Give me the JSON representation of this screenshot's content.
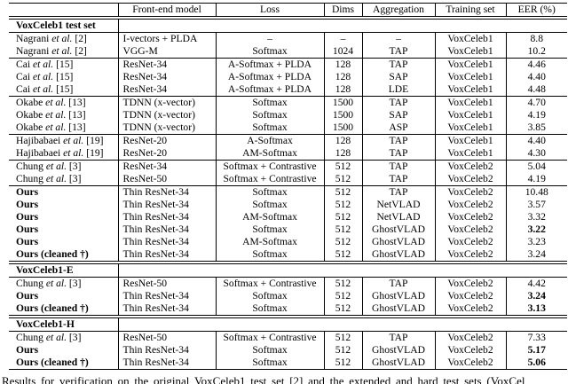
{
  "page": {
    "caption": "Results for verification on the original VoxCeleb1 test set [2] and the extended and hard test sets (VoxCel"
  },
  "table": {
    "columns": [
      {
        "label": ""
      },
      {
        "label": "Front-end model"
      },
      {
        "label": "Loss"
      },
      {
        "label": "Dims"
      },
      {
        "label": "Aggregation"
      },
      {
        "label": "Training set"
      },
      {
        "label": "EER (%)"
      }
    ],
    "sections": [
      {
        "title": "VoxCeleb1 test set",
        "groups": [
          [
            {
              "method": "Nagrani et al. [2]",
              "method_bold": false,
              "front_end": "I-vectors + PLDA",
              "loss": "–",
              "dims": "–",
              "aggregation": "–",
              "training_set": "VoxCeleb1",
              "eer": "8.8",
              "eer_bold": false
            },
            {
              "method": "Nagrani et al. [2]",
              "method_bold": false,
              "front_end": "VGG-M",
              "loss": "Softmax",
              "dims": "1024",
              "aggregation": "TAP",
              "training_set": "VoxCeleb1",
              "eer": "10.2",
              "eer_bold": false
            }
          ],
          [
            {
              "method": "Cai et al. [15]",
              "method_bold": false,
              "front_end": "ResNet-34",
              "loss": "A-Softmax + PLDA",
              "dims": "128",
              "aggregation": "TAP",
              "training_set": "VoxCeleb1",
              "eer": "4.46",
              "eer_bold": false
            },
            {
              "method": "Cai et al. [15]",
              "method_bold": false,
              "front_end": "ResNet-34",
              "loss": "A-Softmax + PLDA",
              "dims": "128",
              "aggregation": "SAP",
              "training_set": "VoxCeleb1",
              "eer": "4.40",
              "eer_bold": false
            },
            {
              "method": "Cai et al. [15]",
              "method_bold": false,
              "front_end": "ResNet-34",
              "loss": "A-Softmax + PLDA",
              "dims": "128",
              "aggregation": "LDE",
              "training_set": "VoxCeleb1",
              "eer": "4.48",
              "eer_bold": false
            }
          ],
          [
            {
              "method": "Okabe et al. [13]",
              "method_bold": false,
              "front_end": "TDNN (x-vector)",
              "loss": "Softmax",
              "dims": "1500",
              "aggregation": "TAP",
              "training_set": "VoxCeleb1",
              "eer": "4.70",
              "eer_bold": false
            },
            {
              "method": "Okabe et al. [13]",
              "method_bold": false,
              "front_end": "TDNN (x-vector)",
              "loss": "Softmax",
              "dims": "1500",
              "aggregation": "SAP",
              "training_set": "VoxCeleb1",
              "eer": "4.19",
              "eer_bold": false
            },
            {
              "method": "Okabe et al. [13]",
              "method_bold": false,
              "front_end": "TDNN (x-vector)",
              "loss": "Softmax",
              "dims": "1500",
              "aggregation": "ASP",
              "training_set": "VoxCeleb1",
              "eer": "3.85",
              "eer_bold": false
            }
          ],
          [
            {
              "method": "Hajibabaei et al. [19]",
              "method_bold": false,
              "front_end": "ResNet-20",
              "loss": "A-Softmax",
              "dims": "128",
              "aggregation": "TAP",
              "training_set": "VoxCeleb1",
              "eer": "4.40",
              "eer_bold": false
            },
            {
              "method": "Hajibabaei et al. [19]",
              "method_bold": false,
              "front_end": "ResNet-20",
              "loss": "AM-Softmax",
              "dims": "128",
              "aggregation": "TAP",
              "training_set": "VoxCeleb1",
              "eer": "4.30",
              "eer_bold": false
            }
          ],
          [
            {
              "method": "Chung et al. [3]",
              "method_bold": false,
              "front_end": "ResNet-34",
              "loss": "Softmax + Contrastive",
              "dims": "512",
              "aggregation": "TAP",
              "training_set": "VoxCeleb2",
              "eer": "5.04",
              "eer_bold": false
            },
            {
              "method": "Chung et al. [3]",
              "method_bold": false,
              "front_end": "ResNet-50",
              "loss": "Softmax + Contrastive",
              "dims": "512",
              "aggregation": "TAP",
              "training_set": "VoxCeleb2",
              "eer": "4.19",
              "eer_bold": false
            }
          ],
          [
            {
              "method": "Ours",
              "method_bold": true,
              "front_end": "Thin ResNet-34",
              "loss": "Softmax",
              "dims": "512",
              "aggregation": "TAP",
              "training_set": "VoxCeleb2",
              "eer": "10.48",
              "eer_bold": false
            },
            {
              "method": "Ours",
              "method_bold": true,
              "front_end": "Thin ResNet-34",
              "loss": "Softmax",
              "dims": "512",
              "aggregation": "NetVLAD",
              "training_set": "VoxCeleb2",
              "eer": "3.57",
              "eer_bold": false
            },
            {
              "method": "Ours",
              "method_bold": true,
              "front_end": "Thin ResNet-34",
              "loss": "AM-Softmax",
              "dims": "512",
              "aggregation": "NetVLAD",
              "training_set": "VoxCeleb2",
              "eer": "3.32",
              "eer_bold": false
            },
            {
              "method": "Ours",
              "method_bold": true,
              "front_end": "Thin ResNet-34",
              "loss": "Softmax",
              "dims": "512",
              "aggregation": "GhostVLAD",
              "training_set": "VoxCeleb2",
              "eer": "3.22",
              "eer_bold": true
            },
            {
              "method": "Ours",
              "method_bold": true,
              "front_end": "Thin ResNet-34",
              "loss": "AM-Softmax",
              "dims": "512",
              "aggregation": "GhostVLAD",
              "training_set": "VoxCeleb2",
              "eer": "3.23",
              "eer_bold": false
            },
            {
              "method": "Ours (cleaned †)",
              "method_bold": true,
              "front_end": "Thin ResNet-34",
              "loss": "Softmax",
              "dims": "512",
              "aggregation": "GhostVLAD",
              "training_set": "VoxCeleb2",
              "eer": "3.24",
              "eer_bold": false
            }
          ]
        ]
      },
      {
        "title": "VoxCeleb1-E",
        "groups": [
          [
            {
              "method": "Chung et al. [3]",
              "method_bold": false,
              "front_end": "ResNet-50",
              "loss": "Softmax + Contrastive",
              "dims": "512",
              "aggregation": "TAP",
              "training_set": "VoxCeleb2",
              "eer": "4.42",
              "eer_bold": false
            },
            {
              "method": "Ours",
              "method_bold": true,
              "front_end": "Thin ResNet-34",
              "loss": "Softmax",
              "dims": "512",
              "aggregation": "GhostVLAD",
              "training_set": "VoxCeleb2",
              "eer": "3.24",
              "eer_bold": true
            },
            {
              "method": "Ours (cleaned †)",
              "method_bold": true,
              "front_end": "Thin ResNet-34",
              "loss": "Softmax",
              "dims": "512",
              "aggregation": "GhostVLAD",
              "training_set": "VoxCeleb2",
              "eer": "3.13",
              "eer_bold": true
            }
          ]
        ]
      },
      {
        "title": "VoxCeleb1-H",
        "groups": [
          [
            {
              "method": "Chung et al. [3]",
              "method_bold": false,
              "front_end": "ResNet-50",
              "loss": "Softmax + Contrastive",
              "dims": "512",
              "aggregation": "TAP",
              "training_set": "VoxCeleb2",
              "eer": "7.33",
              "eer_bold": false
            },
            {
              "method": "Ours",
              "method_bold": true,
              "front_end": "Thin ResNet-34",
              "loss": "Softmax",
              "dims": "512",
              "aggregation": "GhostVLAD",
              "training_set": "VoxCeleb2",
              "eer": "5.17",
              "eer_bold": true
            },
            {
              "method": "Ours (cleaned †)",
              "method_bold": true,
              "front_end": "Thin ResNet-34",
              "loss": "Softmax",
              "dims": "512",
              "aggregation": "GhostVLAD",
              "training_set": "VoxCeleb2",
              "eer": "5.06",
              "eer_bold": true
            }
          ]
        ]
      }
    ]
  }
}
